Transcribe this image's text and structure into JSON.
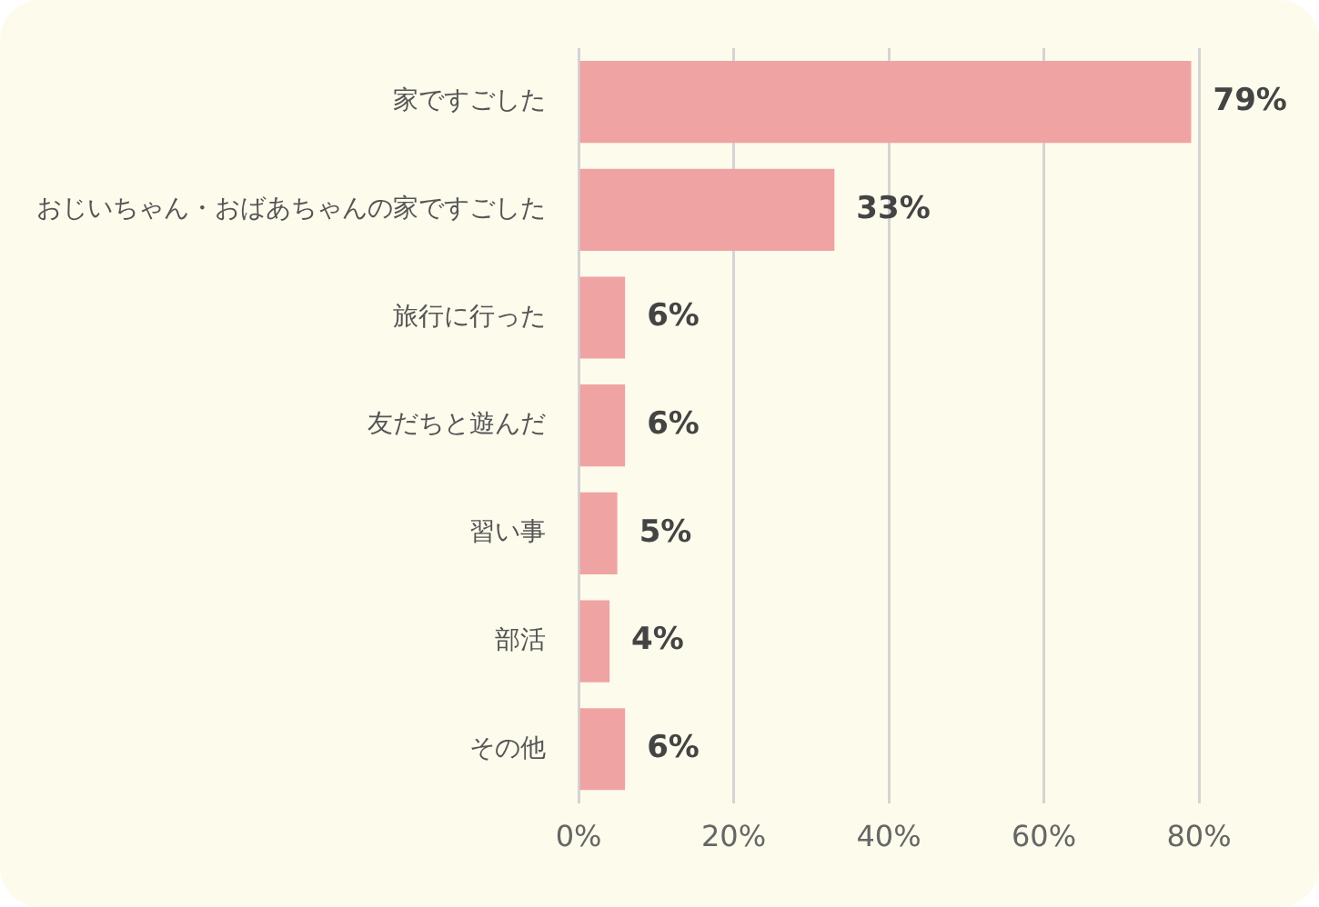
{
  "chart_data": {
    "type": "bar",
    "orientation": "horizontal",
    "categories": [
      "家ですごした",
      "おじいちゃん・おばあちゃんの家ですごした",
      "旅行に行った",
      "友だちと遊んだ",
      "習い事",
      "部活",
      "その他"
    ],
    "values": [
      79,
      33,
      6,
      6,
      5,
      4,
      6
    ],
    "value_labels": [
      "79%",
      "33%",
      "6%",
      "6%",
      "5%",
      "4%",
      "6%"
    ],
    "color": "#f0a3a3",
    "xlim": [
      0,
      80
    ],
    "xticks": [
      {
        "value": 0,
        "label": "0%"
      },
      {
        "value": 20,
        "label": "20%"
      },
      {
        "value": 40,
        "label": "40%"
      },
      {
        "value": 60,
        "label": "60%"
      },
      {
        "value": 80,
        "label": "80%"
      }
    ],
    "grid": "x",
    "legend": false
  }
}
